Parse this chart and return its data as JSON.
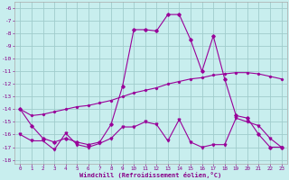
{
  "xlabel": "Windchill (Refroidissement éolien,°C)",
  "background_color": "#c8eeee",
  "grid_color": "#a0cccc",
  "line_color": "#990099",
  "text_color": "#880088",
  "xlim": [
    -0.5,
    23.5
  ],
  "ylim": [
    -18.3,
    -5.5
  ],
  "yticks": [
    -18,
    -17,
    -16,
    -15,
    -14,
    -13,
    -12,
    -11,
    -10,
    -9,
    -8,
    -7,
    -6
  ],
  "xticks": [
    0,
    1,
    2,
    3,
    4,
    5,
    6,
    7,
    8,
    9,
    10,
    11,
    12,
    13,
    14,
    15,
    16,
    17,
    18,
    19,
    20,
    21,
    22,
    23
  ],
  "series1_x": [
    0,
    1,
    2,
    3,
    4,
    5,
    6,
    7,
    8,
    9,
    10,
    11,
    12,
    13,
    14,
    15,
    16,
    17,
    18,
    19,
    20,
    21,
    22,
    23
  ],
  "series1_y": [
    -14.0,
    -15.3,
    -16.3,
    -16.6,
    -16.3,
    -16.6,
    -16.8,
    -16.6,
    -15.2,
    -12.2,
    -7.7,
    -7.7,
    -7.8,
    -6.5,
    -6.5,
    -8.5,
    -11.0,
    -8.2,
    -11.6,
    -14.5,
    -14.7,
    -16.0,
    -17.0,
    -17.0
  ],
  "series2_x": [
    0,
    1,
    2,
    3,
    4,
    5,
    6,
    7,
    8,
    9,
    10,
    11,
    12,
    13,
    14,
    15,
    16,
    17,
    18,
    19,
    20,
    21,
    22,
    23
  ],
  "series2_y": [
    -16.0,
    -16.5,
    -16.5,
    -17.2,
    -15.9,
    -16.8,
    -17.0,
    -16.7,
    -16.3,
    -15.4,
    -15.4,
    -15.0,
    -15.2,
    -16.5,
    -14.8,
    -16.6,
    -17.0,
    -16.8,
    -16.8,
    -14.7,
    -15.0,
    -15.3,
    -16.3,
    -17.0
  ],
  "series3_x": [
    0,
    1,
    2,
    3,
    4,
    5,
    6,
    7,
    8,
    9,
    10,
    11,
    12,
    13,
    14,
    15,
    16,
    17,
    18,
    19,
    20,
    21,
    22,
    23
  ],
  "series3_y": [
    -14.0,
    -14.5,
    -14.4,
    -14.2,
    -14.0,
    -13.8,
    -13.7,
    -13.5,
    -13.3,
    -13.0,
    -12.7,
    -12.5,
    -12.3,
    -12.0,
    -11.8,
    -11.6,
    -11.5,
    -11.3,
    -11.2,
    -11.1,
    -11.1,
    -11.2,
    -11.4,
    -11.6
  ]
}
